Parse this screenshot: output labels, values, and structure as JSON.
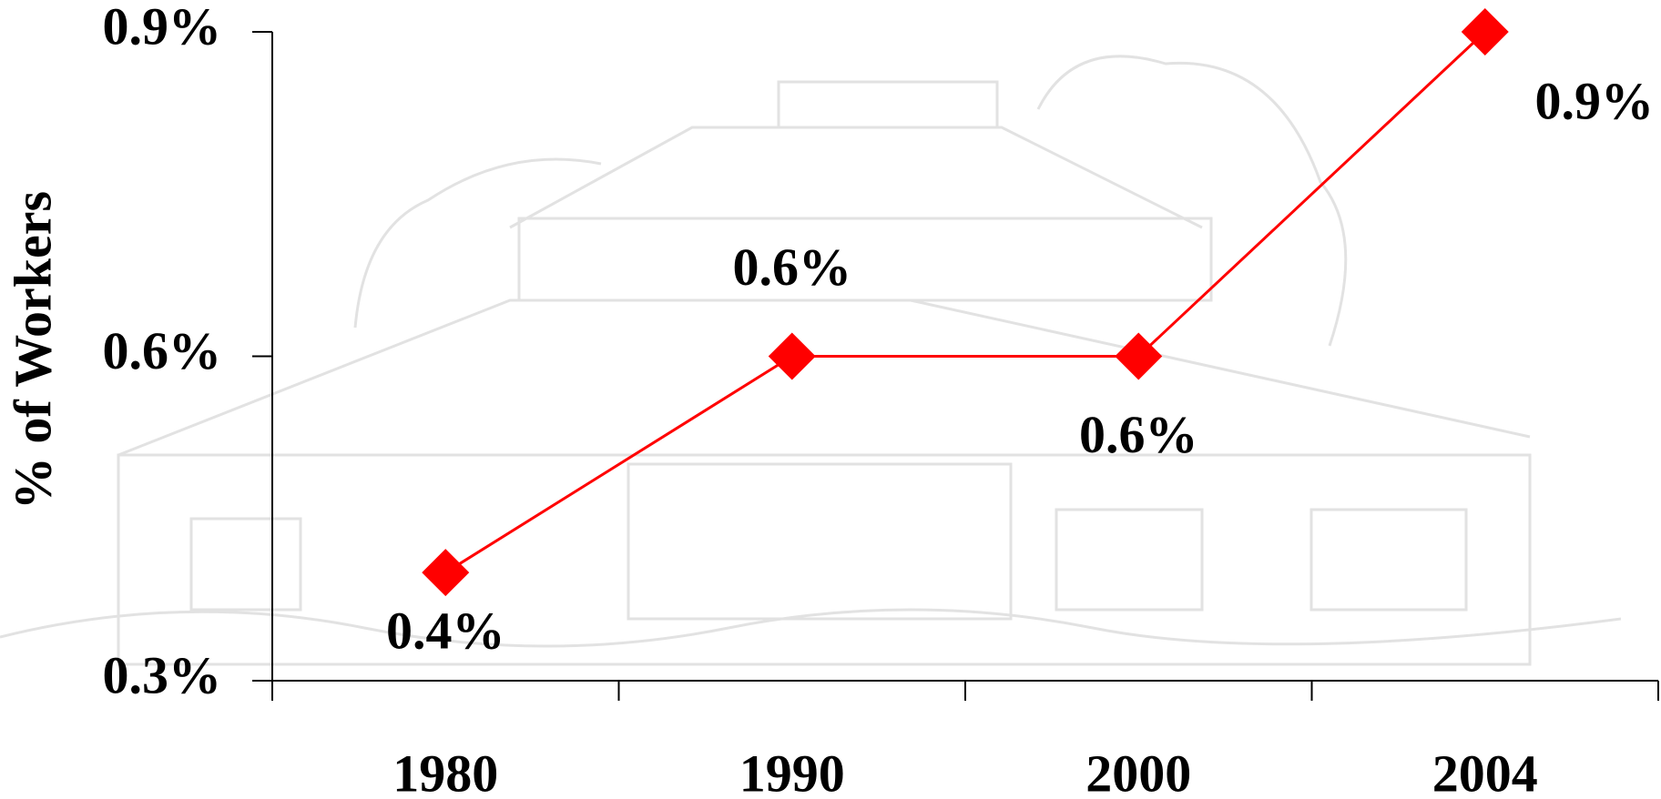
{
  "chart_data": {
    "type": "line",
    "y_label": "% of Workers",
    "categories": [
      "1980",
      "1990",
      "2000",
      "2004"
    ],
    "series": [
      {
        "name": "% of Workers",
        "color": "#ff0000",
        "values": [
          0.4,
          0.6,
          0.6,
          0.9
        ],
        "value_labels": [
          "0.4%",
          "0.6%",
          "0.6%",
          "0.9%"
        ]
      }
    ],
    "ylim": [
      0.3,
      0.9
    ],
    "yticks": [
      {
        "value": 0.3,
        "label": "0.3%"
      },
      {
        "value": 0.6,
        "label": "0.6%"
      },
      {
        "value": 0.9,
        "label": "0.9%"
      }
    ],
    "grid": false
  }
}
